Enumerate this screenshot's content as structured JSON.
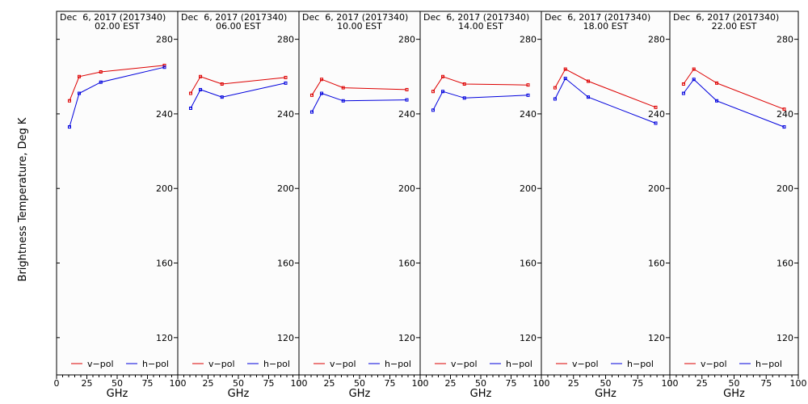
{
  "chart_data": {
    "type": "line",
    "ylabel": "Brightness Temperature, Deg K",
    "xlabel": "GHz",
    "xlim": [
      0,
      100
    ],
    "ylim": [
      100,
      295
    ],
    "yticks": [
      120,
      160,
      200,
      240,
      280
    ],
    "xticks": [
      0,
      25,
      50,
      75,
      100
    ],
    "x": [
      10.65,
      18.7,
      36.5,
      89.0
    ],
    "colors": {
      "v": "#dd0000",
      "h": "#0000dd"
    },
    "legend": [
      {
        "key": "v",
        "label": "v−pol"
      },
      {
        "key": "h",
        "label": "h−pol"
      }
    ],
    "panels": [
      {
        "date": "Dec  6, 2017 (2017340)",
        "time": "02.00 EST",
        "series": [
          {
            "name": "v-pol",
            "values": [
              247,
              260,
              262.5,
              266
            ]
          },
          {
            "name": "h-pol",
            "values": [
              233,
              251,
              257,
              265
            ]
          }
        ]
      },
      {
        "date": "Dec  6, 2017 (2017340)",
        "time": "06.00 EST",
        "series": [
          {
            "name": "v-pol",
            "values": [
              251,
              260,
              256,
              259.5
            ]
          },
          {
            "name": "h-pol",
            "values": [
              243,
              253,
              249,
              256.5
            ]
          }
        ]
      },
      {
        "date": "Dec  6, 2017 (2017340)",
        "time": "10.00 EST",
        "series": [
          {
            "name": "v-pol",
            "values": [
              250,
              258.5,
              254,
              253
            ]
          },
          {
            "name": "h-pol",
            "values": [
              241,
              251,
              247,
              247.5
            ]
          }
        ]
      },
      {
        "date": "Dec  6, 2017 (2017340)",
        "time": "14.00 EST",
        "series": [
          {
            "name": "v-pol",
            "values": [
              252,
              260,
              256,
              255.5
            ]
          },
          {
            "name": "h-pol",
            "values": [
              242,
              252,
              248.5,
              250
            ]
          }
        ]
      },
      {
        "date": "Dec  6, 2017 (2017340)",
        "time": "18.00 EST",
        "series": [
          {
            "name": "v-pol",
            "values": [
              254,
              264,
              257.5,
              243.5
            ]
          },
          {
            "name": "h-pol",
            "values": [
              248,
              259,
              249,
              235
            ]
          }
        ]
      },
      {
        "date": "Dec  6, 2017 (2017340)",
        "time": "22.00 EST",
        "series": [
          {
            "name": "v-pol",
            "values": [
              256,
              264,
              256.5,
              242.5
            ]
          },
          {
            "name": "h-pol",
            "values": [
              251,
              258.5,
              247,
              233
            ]
          }
        ]
      }
    ]
  }
}
